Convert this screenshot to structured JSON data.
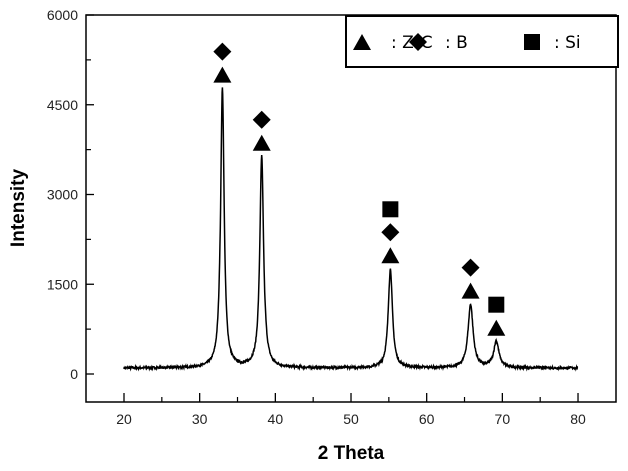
{
  "chart_data": {
    "type": "line",
    "title": "",
    "xlabel": "2 Theta",
    "ylabel": "Intensity",
    "xlim": [
      15,
      85
    ],
    "ylim": [
      -400,
      6000
    ],
    "xticks": [
      20,
      30,
      40,
      50,
      60,
      70,
      80
    ],
    "yticks": [
      0,
      1500,
      3000,
      4500,
      6000
    ],
    "x_range_data": [
      20,
      80
    ],
    "baseline": 100,
    "grid": false,
    "legend_position": "top-right",
    "legend": [
      {
        "marker": "triangle",
        "label": ": ZrC"
      },
      {
        "marker": "diamond",
        "label": ": B"
      },
      {
        "marker": "square",
        "label": ": Si"
      }
    ],
    "peaks": [
      {
        "x": 33.0,
        "y": 4770,
        "phases": [
          "ZrC",
          "B"
        ]
      },
      {
        "x": 38.2,
        "y": 3630,
        "phases": [
          "ZrC",
          "B"
        ]
      },
      {
        "x": 55.2,
        "y": 1750,
        "phases": [
          "ZrC",
          "B",
          "Si"
        ]
      },
      {
        "x": 65.8,
        "y": 1160,
        "phases": [
          "ZrC",
          "B"
        ]
      },
      {
        "x": 69.2,
        "y": 540,
        "phases": [
          "ZrC",
          "Si"
        ]
      }
    ],
    "color": "#000000"
  }
}
